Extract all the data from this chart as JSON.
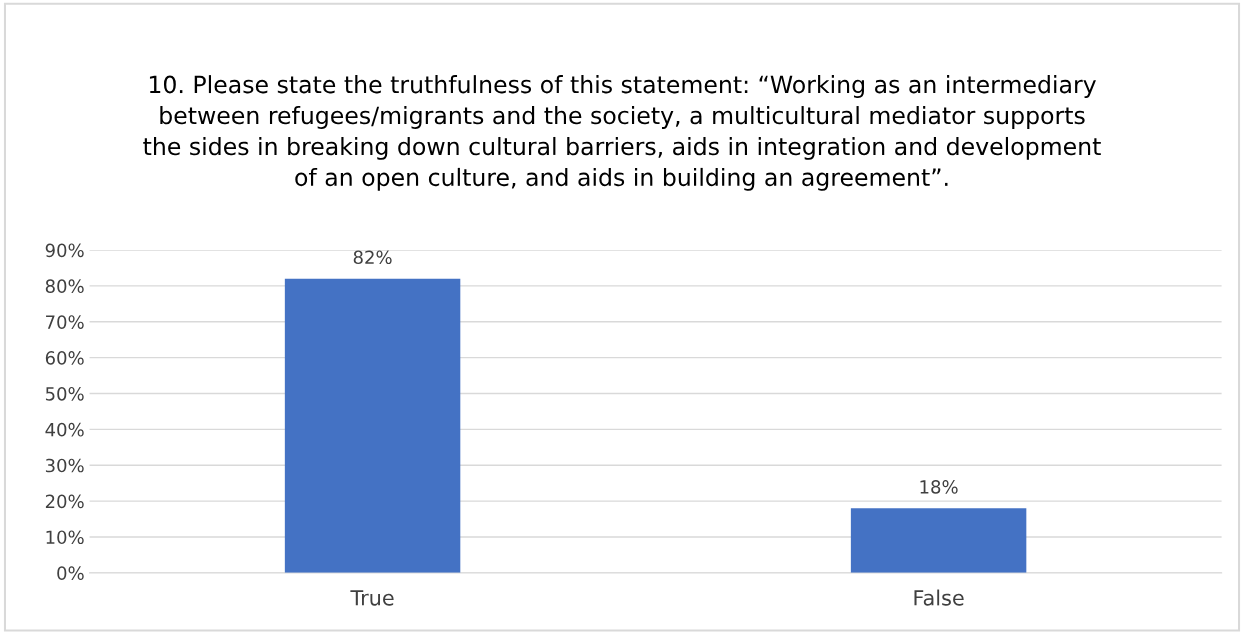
{
  "chart_data": {
    "type": "bar",
    "title": "10. Please state the truthfulness of this statement: “Working as an intermediary\nbetween refugees/migrants and the society, a multicultural mediator supports\nthe sides in breaking down cultural barriers, aids in integration and development\nof an open culture, and aids in building an agreement”.",
    "categories": [
      "True",
      "False"
    ],
    "values": [
      82,
      18
    ],
    "value_labels": [
      "82%",
      "18%"
    ],
    "color": "#4472c4",
    "ylim": [
      0,
      90
    ],
    "yticks": [
      {
        "value": 0,
        "label": "0%"
      },
      {
        "value": 10,
        "label": "10%"
      },
      {
        "value": 20,
        "label": "20%"
      },
      {
        "value": 30,
        "label": "30%"
      },
      {
        "value": 40,
        "label": "40%"
      },
      {
        "value": 50,
        "label": "50%"
      },
      {
        "value": 60,
        "label": "60%"
      },
      {
        "value": 70,
        "label": "70%"
      },
      {
        "value": 80,
        "label": "80%"
      },
      {
        "value": 90,
        "label": "90%"
      }
    ],
    "grid": "y",
    "legend": false
  }
}
